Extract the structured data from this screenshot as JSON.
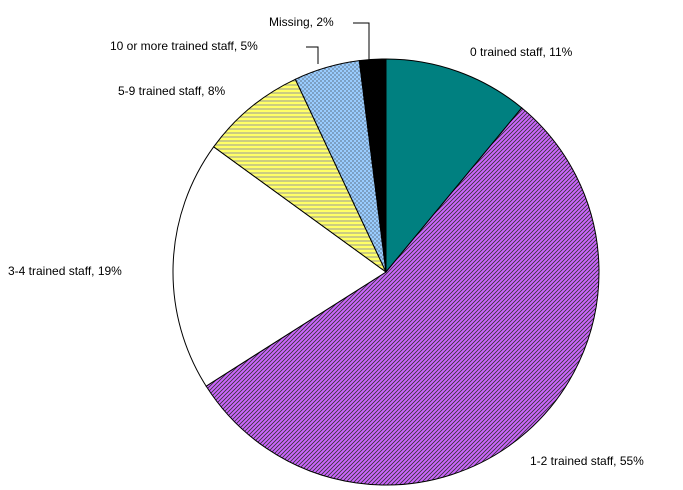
{
  "chart_data": {
    "type": "pie",
    "values": [
      11,
      55,
      19,
      8,
      5,
      2
    ],
    "value_labels": [
      "0 trained staff, 11%",
      "1-2 trained staff, 55%",
      "3-4 trained staff, 19%",
      "5-9 trained staff, 8%",
      "10 or more trained staff, 5%",
      "Missing, 2%"
    ],
    "colors": [
      "#008080",
      "#cc66ff",
      "#ffffff",
      "#ffff66",
      "#99ccff",
      "#000000"
    ],
    "patterns": [
      "solid",
      "diagonal",
      "solid",
      "horizontal",
      "dots",
      "solid"
    ]
  }
}
